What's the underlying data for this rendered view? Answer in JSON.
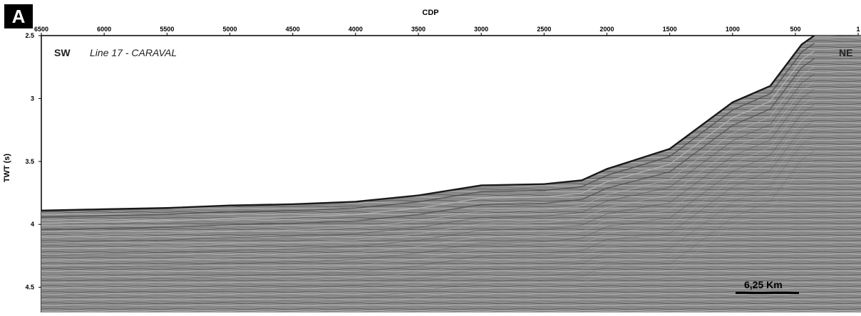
{
  "panel_label": "A",
  "x_axis": {
    "title": "CDP",
    "ticks": [
      "6500",
      "6000",
      "5500",
      "5000",
      "4500",
      "4000",
      "3500",
      "3000",
      "2500",
      "2000",
      "1500",
      "1000",
      "500",
      "1"
    ]
  },
  "y_axis": {
    "title": "TWT (s)",
    "ticks": [
      "2.5",
      "3",
      "3.5",
      "4",
      "4.5"
    ]
  },
  "annotations": {
    "left_direction": "SW",
    "line_name": "Line 17 - CARAVAL",
    "right_direction": "NE",
    "scale_bar": "6,25 Km"
  },
  "colors": {
    "background": "#ffffff",
    "seismic_base": "#8c8c8c",
    "reflector": "#2a2a2a",
    "label_box": "#000000"
  },
  "seafloor_profile": {
    "description_units": "CDP vs TWT seconds",
    "points": [
      {
        "cdp": 6500,
        "twt": 3.89
      },
      {
        "cdp": 6000,
        "twt": 3.88
      },
      {
        "cdp": 5500,
        "twt": 3.87
      },
      {
        "cdp": 5000,
        "twt": 3.85
      },
      {
        "cdp": 4500,
        "twt": 3.84
      },
      {
        "cdp": 4000,
        "twt": 3.82
      },
      {
        "cdp": 3500,
        "twt": 3.77
      },
      {
        "cdp": 3000,
        "twt": 3.69
      },
      {
        "cdp": 2500,
        "twt": 3.68
      },
      {
        "cdp": 2200,
        "twt": 3.65
      },
      {
        "cdp": 2000,
        "twt": 3.56
      },
      {
        "cdp": 1500,
        "twt": 3.4
      },
      {
        "cdp": 1000,
        "twt": 3.03
      },
      {
        "cdp": 700,
        "twt": 2.9
      },
      {
        "cdp": 450,
        "twt": 2.57
      },
      {
        "cdp": 350,
        "twt": 2.5
      }
    ]
  }
}
